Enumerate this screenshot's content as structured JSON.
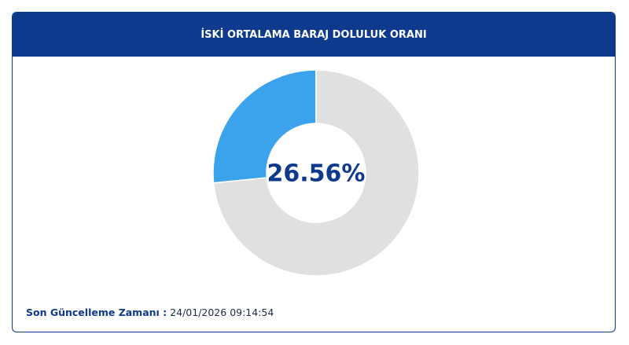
{
  "header": {
    "title": "İSKİ ORTALAMA BARAJ DOLULUK ORANI"
  },
  "chart_data": {
    "type": "pie",
    "donut": true,
    "direction": "counterclockwise",
    "values": [
      26.56,
      73.44
    ],
    "value_labels": [
      "26.56%",
      null
    ],
    "colors": [
      "#3ba3eb",
      "#e0e0e0"
    ]
  },
  "footer": {
    "label": "Son Güncelleme Zamanı :",
    "value": "24/01/2026 09:14:54"
  }
}
